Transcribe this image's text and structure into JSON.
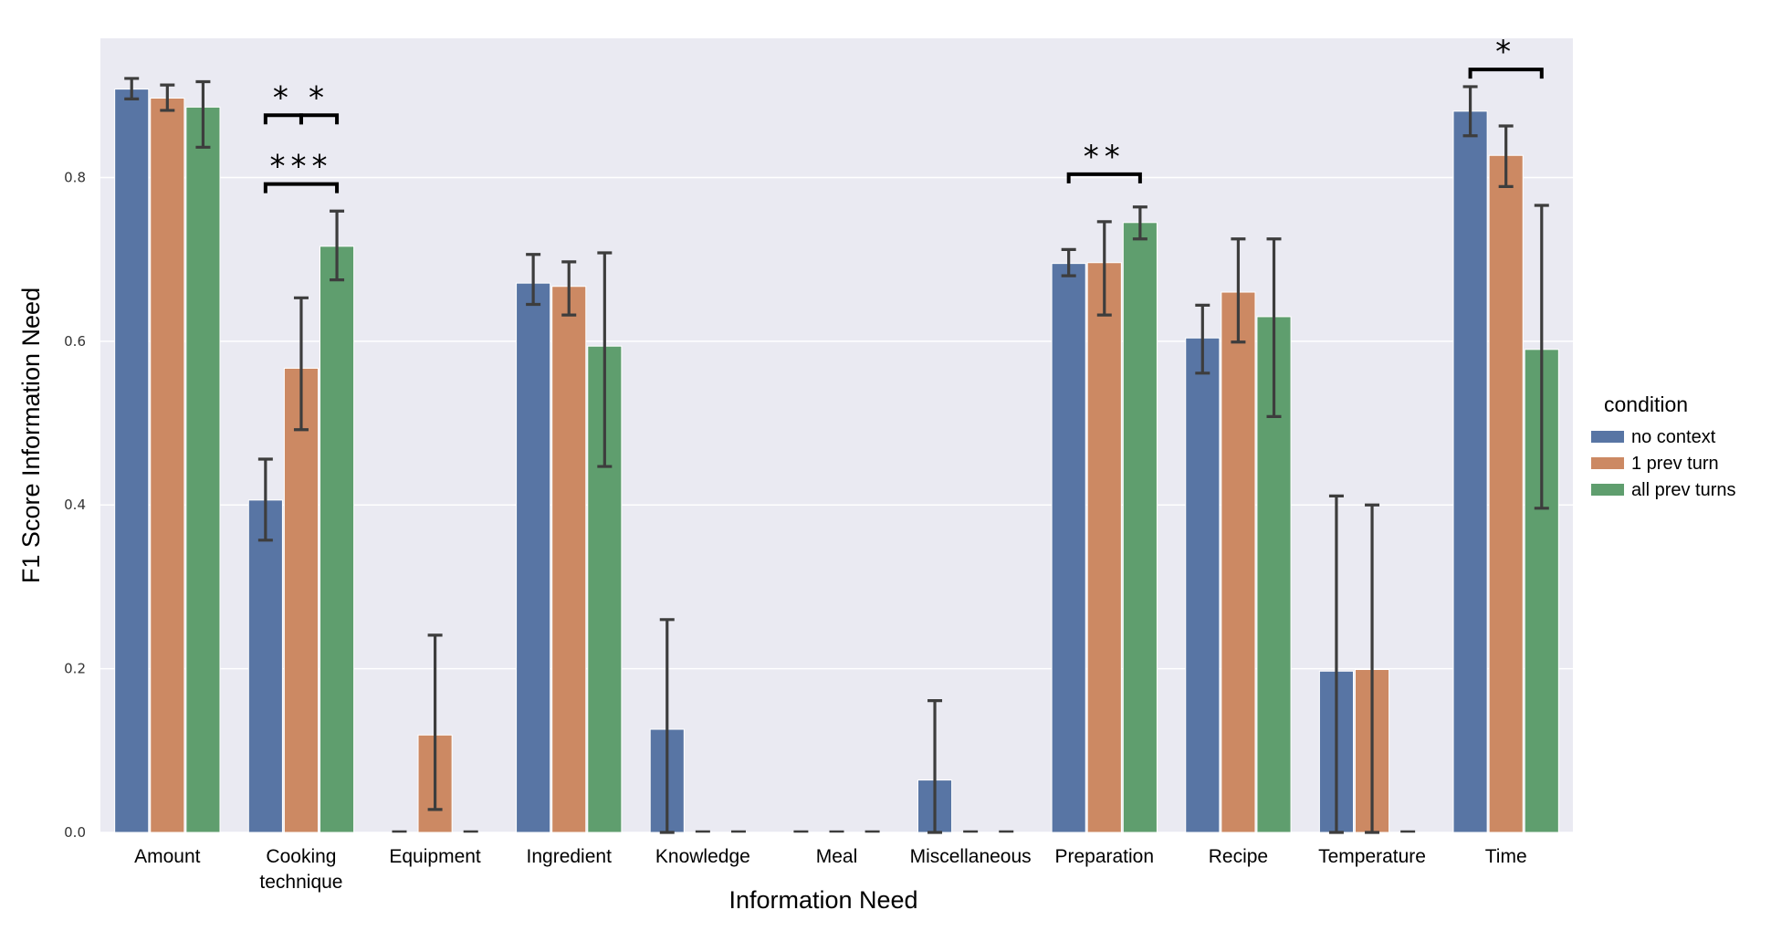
{
  "chart_data": {
    "type": "bar",
    "xlabel": "Information Need",
    "ylabel": "F1 Score Information Need",
    "ylim": [
      0,
      0.97
    ],
    "yticks": [
      0.0,
      0.2,
      0.4,
      0.6,
      0.8
    ],
    "ytick_labels": [
      "0.0",
      "0.2",
      "0.4",
      "0.6",
      "0.8"
    ],
    "grid": true,
    "categories": [
      [
        "Amount"
      ],
      [
        "Cooking",
        "technique"
      ],
      [
        "Equipment"
      ],
      [
        "Ingredient"
      ],
      [
        "Knowledge"
      ],
      [
        "Meal"
      ],
      [
        "Miscellaneous"
      ],
      [
        "Preparation"
      ],
      [
        "Recipe"
      ],
      [
        "Temperature"
      ],
      [
        "Time"
      ]
    ],
    "legend": {
      "title": "condition",
      "placement": "right"
    },
    "series": [
      {
        "name": "no context",
        "color": "#5875a4",
        "values": [
          0.908,
          0.406,
          0.0,
          0.671,
          0.126,
          0.0,
          0.064,
          0.695,
          0.604,
          0.197,
          0.881
        ],
        "err_low": [
          0.896,
          0.357,
          0.0,
          0.645,
          0.0,
          0.0,
          0.0,
          0.68,
          0.561,
          0.0,
          0.851
        ],
        "err_high": [
          0.921,
          0.456,
          0.0,
          0.706,
          0.26,
          0.0,
          0.161,
          0.712,
          0.644,
          0.411,
          0.911
        ]
      },
      {
        "name": "1 prev turn",
        "color": "#cc8963",
        "values": [
          0.897,
          0.567,
          0.119,
          0.667,
          0.0,
          0.0,
          0.0,
          0.696,
          0.66,
          0.199,
          0.827
        ],
        "err_low": [
          0.882,
          0.492,
          0.028,
          0.632,
          0.0,
          0.0,
          0.0,
          0.632,
          0.599,
          0.0,
          0.789
        ],
        "err_high": [
          0.913,
          0.653,
          0.241,
          0.697,
          0.0,
          0.0,
          0.0,
          0.746,
          0.725,
          0.4,
          0.863
        ]
      },
      {
        "name": "all prev turns",
        "color": "#5f9e6e",
        "values": [
          0.886,
          0.716,
          0.0,
          0.594,
          0.0,
          0.0,
          0.0,
          0.745,
          0.63,
          0.0,
          0.59
        ],
        "err_low": [
          0.837,
          0.675,
          0.0,
          0.447,
          0.0,
          0.0,
          0.0,
          0.725,
          0.508,
          0.0,
          0.396
        ],
        "err_high": [
          0.917,
          0.759,
          0.0,
          0.708,
          0.0,
          0.0,
          0.0,
          0.764,
          0.725,
          0.0,
          0.766
        ]
      }
    ],
    "annotations": [
      {
        "category": 1,
        "from_series": 0,
        "to_series": 1,
        "text": "*",
        "level": 0.876
      },
      {
        "category": 1,
        "from_series": 1,
        "to_series": 2,
        "text": "*",
        "level": 0.876
      },
      {
        "category": 1,
        "from_series": 0,
        "to_series": 2,
        "text": "***",
        "level": 0.792
      },
      {
        "category": 7,
        "from_series": 0,
        "to_series": 2,
        "text": "**",
        "level": 0.804
      },
      {
        "category": 10,
        "from_series": 0,
        "to_series": 2,
        "text": "*",
        "level": 0.932
      }
    ]
  }
}
